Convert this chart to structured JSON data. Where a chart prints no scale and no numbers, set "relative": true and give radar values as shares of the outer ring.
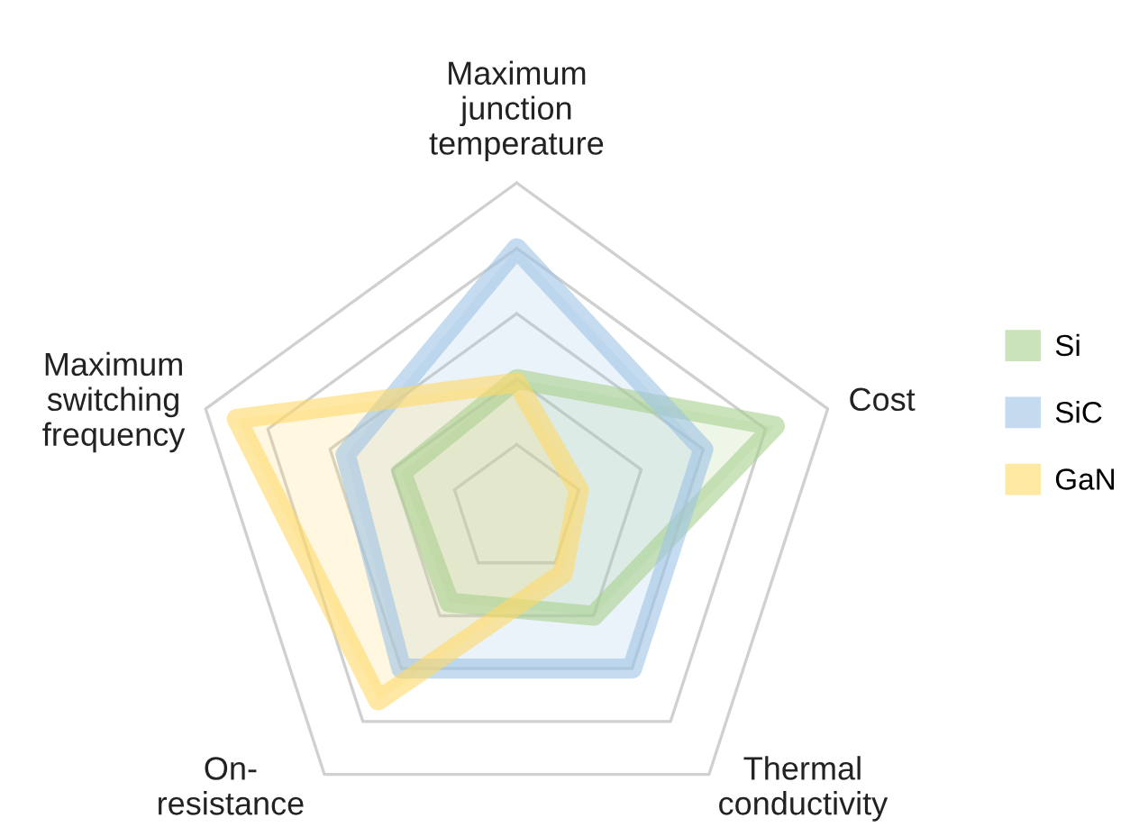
{
  "chart_data": {
    "type": "radar",
    "relative": true,
    "grid": true,
    "legend": "right",
    "marker": "none",
    "categories": [
      "Maximum\njunction\ntemperature",
      "Cost",
      "Thermal\nconductivity",
      "On-\nresistance",
      "Maximum\nswitching\nfrequency"
    ],
    "series": [
      {
        "name": "Si",
        "color": "#a9d18e",
        "values": [
          0.4,
          0.83,
          0.4,
          0.35,
          0.37
        ]
      },
      {
        "name": "SiC",
        "color": "#9dc3e6",
        "values": [
          0.8,
          0.6,
          0.6,
          0.6,
          0.55
        ]
      },
      {
        "name": "GaN",
        "color": "#ffd966",
        "values": [
          0.39,
          0.2,
          0.24,
          0.72,
          0.9
        ]
      }
    ]
  }
}
